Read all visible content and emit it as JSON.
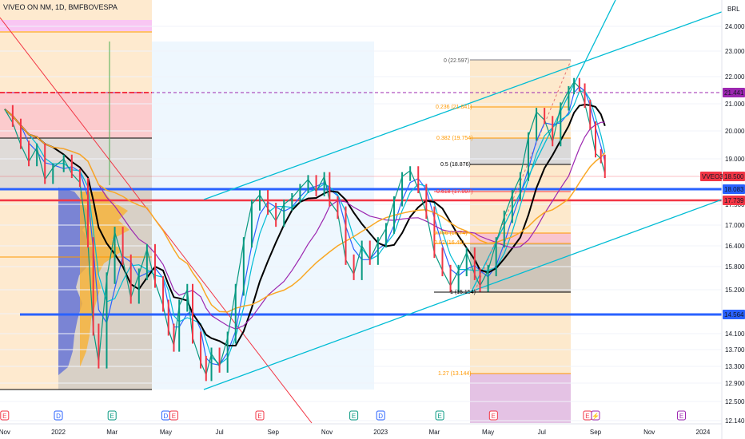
{
  "chart_data": {
    "type": "line",
    "title": "VIVEO ON NM, 1D, BMFBOVESPA",
    "currency": "BRL",
    "y_ticks": [
      "24.000",
      "23.000",
      "22.000",
      "21.000",
      "20.000",
      "19.000",
      "18.000",
      "17.500",
      "17.000",
      "16.400",
      "15.800",
      "15.200",
      "14.600",
      "14.100",
      "13.700",
      "13.300",
      "12.900",
      "12.500",
      "12.140"
    ],
    "x_ticks": [
      "Nov",
      "2022",
      "Mar",
      "May",
      "Jul",
      "Sep",
      "Nov",
      "2023",
      "Mar",
      "May",
      "Jul",
      "Sep",
      "Nov",
      "2024"
    ],
    "price_labels": [
      {
        "text": "21.441",
        "color": "#9c27b0"
      },
      {
        "text": "VVEO3",
        "color": "#f23645"
      },
      {
        "text": "18.500",
        "color": "#f23645"
      },
      {
        "text": "18.083",
        "color": "#2962ff"
      },
      {
        "text": "17.739",
        "color": "#f23645"
      },
      {
        "text": "14.564",
        "color": "#2962ff"
      }
    ],
    "fib_labels": [
      {
        "text": "0 (22.597)",
        "color": "#555555"
      },
      {
        "text": "0.236 (21.841)",
        "color": "#ff9800"
      },
      {
        "text": "0.382 (19.754)",
        "color": "#ff9800"
      },
      {
        "text": "0.5 (18.876)",
        "color": "#000000"
      },
      {
        "text": "0.618 (17.997)",
        "color": "#f23645"
      },
      {
        "text": "0.786 (16.74)",
        "color": "#ff9800"
      },
      {
        "text": "0.82 (16.49)",
        "color": "#ff9800"
      },
      {
        "text": "1 (15.154)",
        "color": "#000000"
      },
      {
        "text": "1.27 (13.144)",
        "color": "#ff9800"
      }
    ],
    "events": [
      {
        "label": "E",
        "month": -2,
        "color": "#f23645"
      },
      {
        "label": "D",
        "month": 0,
        "color": "#2962ff"
      },
      {
        "label": "E",
        "month": 2,
        "color": "#089981"
      },
      {
        "label": "D",
        "month": 4,
        "color": "#2962ff"
      },
      {
        "label": "E",
        "month": 4.3,
        "color": "#f23645"
      },
      {
        "label": "E",
        "month": 7.5,
        "color": "#f23645"
      },
      {
        "label": "E",
        "month": 11,
        "color": "#089981"
      },
      {
        "label": "D",
        "month": 12,
        "color": "#2962ff"
      },
      {
        "label": "E",
        "month": 14.2,
        "color": "#089981"
      },
      {
        "label": "E",
        "month": 16.2,
        "color": "#f23645"
      },
      {
        "label": "E",
        "month": 19.7,
        "color": "#f23645"
      },
      {
        "label": "⚡",
        "month": 20.0,
        "color": "#9c27b0"
      },
      {
        "label": "E",
        "month": 23.2,
        "color": "#9c27b0"
      }
    ],
    "price_path": [
      [
        -2,
        20.8
      ],
      [
        -1.7,
        20.3
      ],
      [
        -1.4,
        19.5
      ],
      [
        -1.1,
        18.9
      ],
      [
        -0.8,
        19.4
      ],
      [
        -0.5,
        18.3
      ],
      [
        -0.2,
        18.7
      ],
      [
        0.2,
        19.0
      ],
      [
        0.5,
        18.5
      ],
      [
        0.8,
        18.2
      ],
      [
        1.1,
        16.5
      ],
      [
        1.3,
        14.2
      ],
      [
        1.5,
        13.4
      ],
      [
        1.8,
        15.5
      ],
      [
        2.1,
        16.8
      ],
      [
        2.4,
        16.0
      ],
      [
        2.7,
        15.0
      ],
      [
        3.0,
        15.6
      ],
      [
        3.3,
        16.3
      ],
      [
        3.6,
        15.4
      ],
      [
        3.9,
        14.8
      ],
      [
        4.1,
        14.2
      ],
      [
        4.3,
        13.8
      ],
      [
        4.5,
        14.8
      ],
      [
        4.8,
        15.2
      ],
      [
        5.0,
        14.0
      ],
      [
        5.3,
        13.4
      ],
      [
        5.5,
        13.1
      ],
      [
        5.7,
        13.6
      ],
      [
        6.0,
        13.3
      ],
      [
        6.3,
        14.0
      ],
      [
        6.6,
        15.2
      ],
      [
        6.9,
        16.5
      ],
      [
        7.2,
        17.5
      ],
      [
        7.5,
        17.8
      ],
      [
        7.8,
        17.4
      ],
      [
        8.1,
        17.1
      ],
      [
        8.4,
        17.5
      ],
      [
        8.7,
        17.7
      ],
      [
        9.0,
        18.0
      ],
      [
        9.3,
        18.3
      ],
      [
        9.6,
        17.9
      ],
      [
        9.9,
        18.4
      ],
      [
        10.1,
        17.6
      ],
      [
        10.4,
        17.3
      ],
      [
        10.7,
        16.0
      ],
      [
        11.0,
        15.6
      ],
      [
        11.3,
        16.4
      ],
      [
        11.6,
        16.0
      ],
      [
        11.9,
        16.5
      ],
      [
        12.2,
        16.9
      ],
      [
        12.5,
        17.6
      ],
      [
        12.8,
        18.4
      ],
      [
        13.1,
        18.6
      ],
      [
        13.4,
        18.0
      ],
      [
        13.7,
        17.3
      ],
      [
        14.0,
        16.2
      ],
      [
        14.3,
        15.7
      ],
      [
        14.6,
        15.3
      ],
      [
        14.9,
        15.7
      ],
      [
        15.2,
        16.2
      ],
      [
        15.5,
        15.6
      ],
      [
        15.7,
        15.3
      ],
      [
        16.0,
        15.7
      ],
      [
        16.3,
        16.5
      ],
      [
        16.6,
        17.2
      ],
      [
        16.9,
        17.8
      ],
      [
        17.2,
        18.4
      ],
      [
        17.5,
        19.8
      ],
      [
        17.8,
        20.7
      ],
      [
        18.1,
        20.4
      ],
      [
        18.4,
        19.6
      ],
      [
        18.7,
        20.9
      ],
      [
        19.0,
        21.5
      ],
      [
        19.2,
        21.8
      ],
      [
        19.4,
        21.6
      ],
      [
        19.6,
        21.0
      ],
      [
        19.8,
        20.2
      ],
      [
        20.0,
        19.2
      ],
      [
        20.2,
        19.0
      ],
      [
        20.35,
        18.5
      ]
    ]
  }
}
